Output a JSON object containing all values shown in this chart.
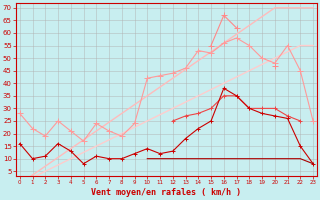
{
  "background_color": "#c8eef0",
  "grid_color": "#b0b0b0",
  "xlabel": "Vent moyen/en rafales ( km/h )",
  "x_values": [
    0,
    1,
    2,
    3,
    4,
    5,
    6,
    7,
    8,
    9,
    10,
    11,
    12,
    13,
    14,
    15,
    16,
    17,
    18,
    19,
    20,
    21,
    22,
    23
  ],
  "yticks": [
    5,
    10,
    15,
    20,
    25,
    30,
    35,
    40,
    45,
    50,
    55,
    60,
    65,
    70
  ],
  "ylim": [
    3,
    72
  ],
  "xlim": [
    -0.3,
    23.3
  ],
  "series": [
    {
      "color": "#ffbbbb",
      "lw": 1.0,
      "marker": null,
      "y": [
        0,
        3.5,
        7,
        10.5,
        14,
        17.5,
        21,
        24.5,
        28,
        31.5,
        35,
        38.5,
        42,
        45.5,
        49,
        52.5,
        56,
        59.5,
        63,
        66.5,
        70,
        70,
        70,
        70
      ]
    },
    {
      "color": "#ffcccc",
      "lw": 1.0,
      "marker": null,
      "y": [
        0,
        2.5,
        5,
        7.5,
        10,
        12.5,
        15,
        17.5,
        20,
        22.5,
        25,
        27.5,
        30,
        32.5,
        35,
        37.5,
        40,
        42.5,
        45,
        47.5,
        50,
        52.5,
        55,
        55
      ]
    },
    {
      "color": "#ff9999",
      "lw": 0.8,
      "marker": "+",
      "ms": 4,
      "y": [
        28,
        22,
        19,
        25,
        21,
        17,
        24,
        21,
        19,
        24,
        42,
        43,
        44,
        46,
        53,
        52,
        56,
        58,
        55,
        50,
        48,
        55,
        45,
        25
      ]
    },
    {
      "color": "#ff8888",
      "lw": 0.8,
      "marker": "+",
      "ms": 4,
      "y": [
        null,
        null,
        null,
        null,
        null,
        null,
        null,
        null,
        null,
        null,
        null,
        null,
        null,
        null,
        null,
        55,
        67,
        62,
        null,
        null,
        47,
        null,
        null,
        null
      ]
    },
    {
      "color": "#ee4444",
      "lw": 0.8,
      "marker": "+",
      "ms": 3.5,
      "y": [
        null,
        null,
        null,
        null,
        null,
        null,
        null,
        null,
        null,
        null,
        null,
        null,
        25,
        27,
        28,
        30,
        35,
        35,
        30,
        30,
        30,
        27,
        25,
        null
      ]
    },
    {
      "color": "#cc0000",
      "lw": 0.8,
      "marker": "+",
      "ms": 3.5,
      "y": [
        16,
        10,
        11,
        16,
        13,
        8,
        11,
        10,
        10,
        12,
        14,
        12,
        13,
        18,
        22,
        25,
        38,
        35,
        30,
        28,
        27,
        26,
        15,
        8
      ]
    },
    {
      "color": "#aa0000",
      "lw": 0.8,
      "marker": null,
      "y": [
        null,
        null,
        null,
        null,
        null,
        null,
        null,
        null,
        null,
        null,
        10,
        10,
        10,
        10,
        10,
        10,
        10,
        10,
        10,
        10,
        10,
        10,
        10,
        8
      ]
    }
  ],
  "tick_color": "#cc0000",
  "label_color": "#cc0000",
  "axis_color": "#cc0000"
}
